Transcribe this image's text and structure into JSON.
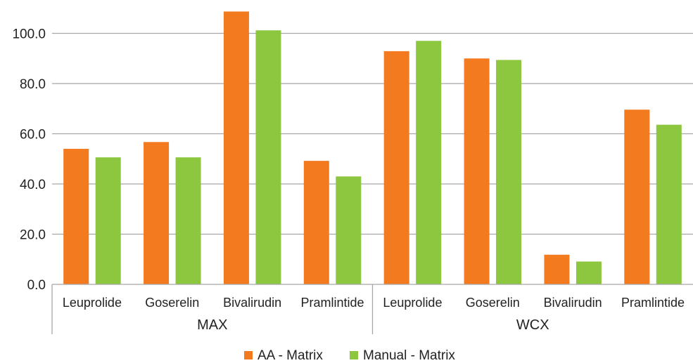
{
  "chart_data": {
    "type": "bar",
    "title": "",
    "xlabel": "",
    "ylabel": "",
    "ylim": [
      0,
      100
    ],
    "y_ticks": [
      "0.0",
      "20.0",
      "40.0",
      "60.0",
      "80.0",
      "100.0"
    ],
    "groups": [
      {
        "label": "MAX",
        "categories": [
          "Leuprolide",
          "Goserelin",
          "Bivalirudin",
          "Pramlintide"
        ]
      },
      {
        "label": "WCX",
        "categories": [
          "Leuprolide",
          "Goserelin",
          "Bivalirudin",
          "Pramlintide"
        ]
      }
    ],
    "series": [
      {
        "name": "AA - Matrix",
        "color": "#F47A20",
        "values": [
          54.0,
          56.7,
          108.7,
          49.2,
          92.9,
          90.0,
          11.8,
          69.6
        ]
      },
      {
        "name": "Manual - Matrix",
        "color": "#8DC63F",
        "values": [
          50.6,
          50.6,
          101.2,
          43.0,
          97.0,
          89.4,
          9.1,
          63.6
        ]
      }
    ],
    "grid": true,
    "legend": "bottom"
  }
}
